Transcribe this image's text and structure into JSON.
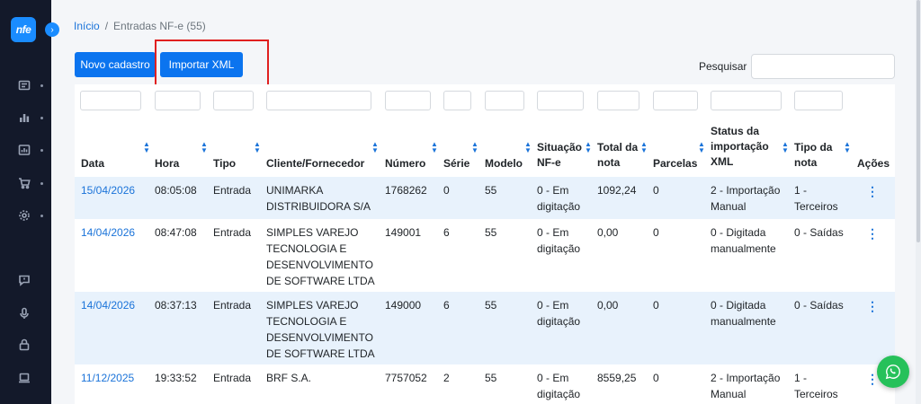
{
  "app": {
    "logo_text": "nfe"
  },
  "breadcrumb": {
    "home": "Início",
    "separator": "/",
    "current": "Entradas NF-e (55)"
  },
  "toolbar": {
    "new_label": "Novo cadastro",
    "import_label": "Importar XML",
    "search_label": "Pesquisar",
    "search_value": ""
  },
  "sidebar": {
    "items": [
      {
        "icon": "dashboard-icon"
      },
      {
        "icon": "chart-icon"
      },
      {
        "icon": "report-icon"
      },
      {
        "icon": "cart-icon"
      },
      {
        "icon": "gear-icon"
      },
      {
        "icon": "chat-icon"
      },
      {
        "icon": "microphone-icon"
      },
      {
        "icon": "lock-icon"
      },
      {
        "icon": "laptop-icon"
      }
    ]
  },
  "table": {
    "headers": {
      "data": "Data",
      "hora": "Hora",
      "tipo": "Tipo",
      "cliente": "Cliente/Fornecedor",
      "numero": "Número",
      "serie": "Série",
      "modelo": "Modelo",
      "situacao_1": "Situação",
      "situacao_2": "NF-e",
      "total_1": "Total da",
      "total_2": "nota",
      "parcelas": "Parcelas",
      "status_1": "Status da",
      "status_2": "importação",
      "status_3": "XML",
      "tiponota_1": "Tipo da",
      "tiponota_2": "nota",
      "acoes": "Ações"
    },
    "rows": [
      {
        "data": "15/04/2026",
        "hora": "08:05:08",
        "tipo": "Entrada",
        "cliente": [
          "UNIMARKA",
          "DISTRIBUIDORA S/A"
        ],
        "numero": "1768262",
        "serie": "0",
        "modelo": "55",
        "situacao": [
          "0 - Em",
          "digitação"
        ],
        "total": "1092,24",
        "parcelas": "0",
        "status": [
          "2 - Importação",
          "Manual"
        ],
        "tipo_nota": [
          "1 -",
          "Terceiros"
        ]
      },
      {
        "data": "14/04/2026",
        "hora": "08:47:08",
        "tipo": "Entrada",
        "cliente": [
          "SIMPLES VAREJO",
          "TECNOLOGIA E",
          "DESENVOLVIMENTO",
          "DE SOFTWARE LTDA"
        ],
        "numero": "149001",
        "serie": "6",
        "modelo": "55",
        "situacao": [
          "0 - Em",
          "digitação"
        ],
        "total": "0,00",
        "parcelas": "0",
        "status": [
          "0 - Digitada",
          "manualmente"
        ],
        "tipo_nota": [
          "0 - Saídas"
        ]
      },
      {
        "data": "14/04/2026",
        "hora": "08:37:13",
        "tipo": "Entrada",
        "cliente": [
          "SIMPLES VAREJO",
          "TECNOLOGIA E",
          "DESENVOLVIMENTO",
          "DE SOFTWARE LTDA"
        ],
        "numero": "149000",
        "serie": "6",
        "modelo": "55",
        "situacao": [
          "0 - Em",
          "digitação"
        ],
        "total": "0,00",
        "parcelas": "0",
        "status": [
          "0 - Digitada",
          "manualmente"
        ],
        "tipo_nota": [
          "0 - Saídas"
        ]
      },
      {
        "data": "11/12/2025",
        "hora": "19:33:52",
        "tipo": "Entrada",
        "cliente": [
          "BRF S.A."
        ],
        "numero": "7757052",
        "serie": "2",
        "modelo": "55",
        "situacao": [
          "0 - Em",
          "digitação"
        ],
        "total": "8559,25",
        "parcelas": "0",
        "status": [
          "2 - Importação",
          "Manual"
        ],
        "tipo_nota": [
          "1 -",
          "Terceiros"
        ]
      }
    ]
  },
  "colors": {
    "primary": "#0b74ef",
    "link": "#1a73d9",
    "sidebar": "#13192a",
    "stripe": "#e8f2fc",
    "whatsapp": "#26c15a",
    "highlight": "#e02020"
  }
}
